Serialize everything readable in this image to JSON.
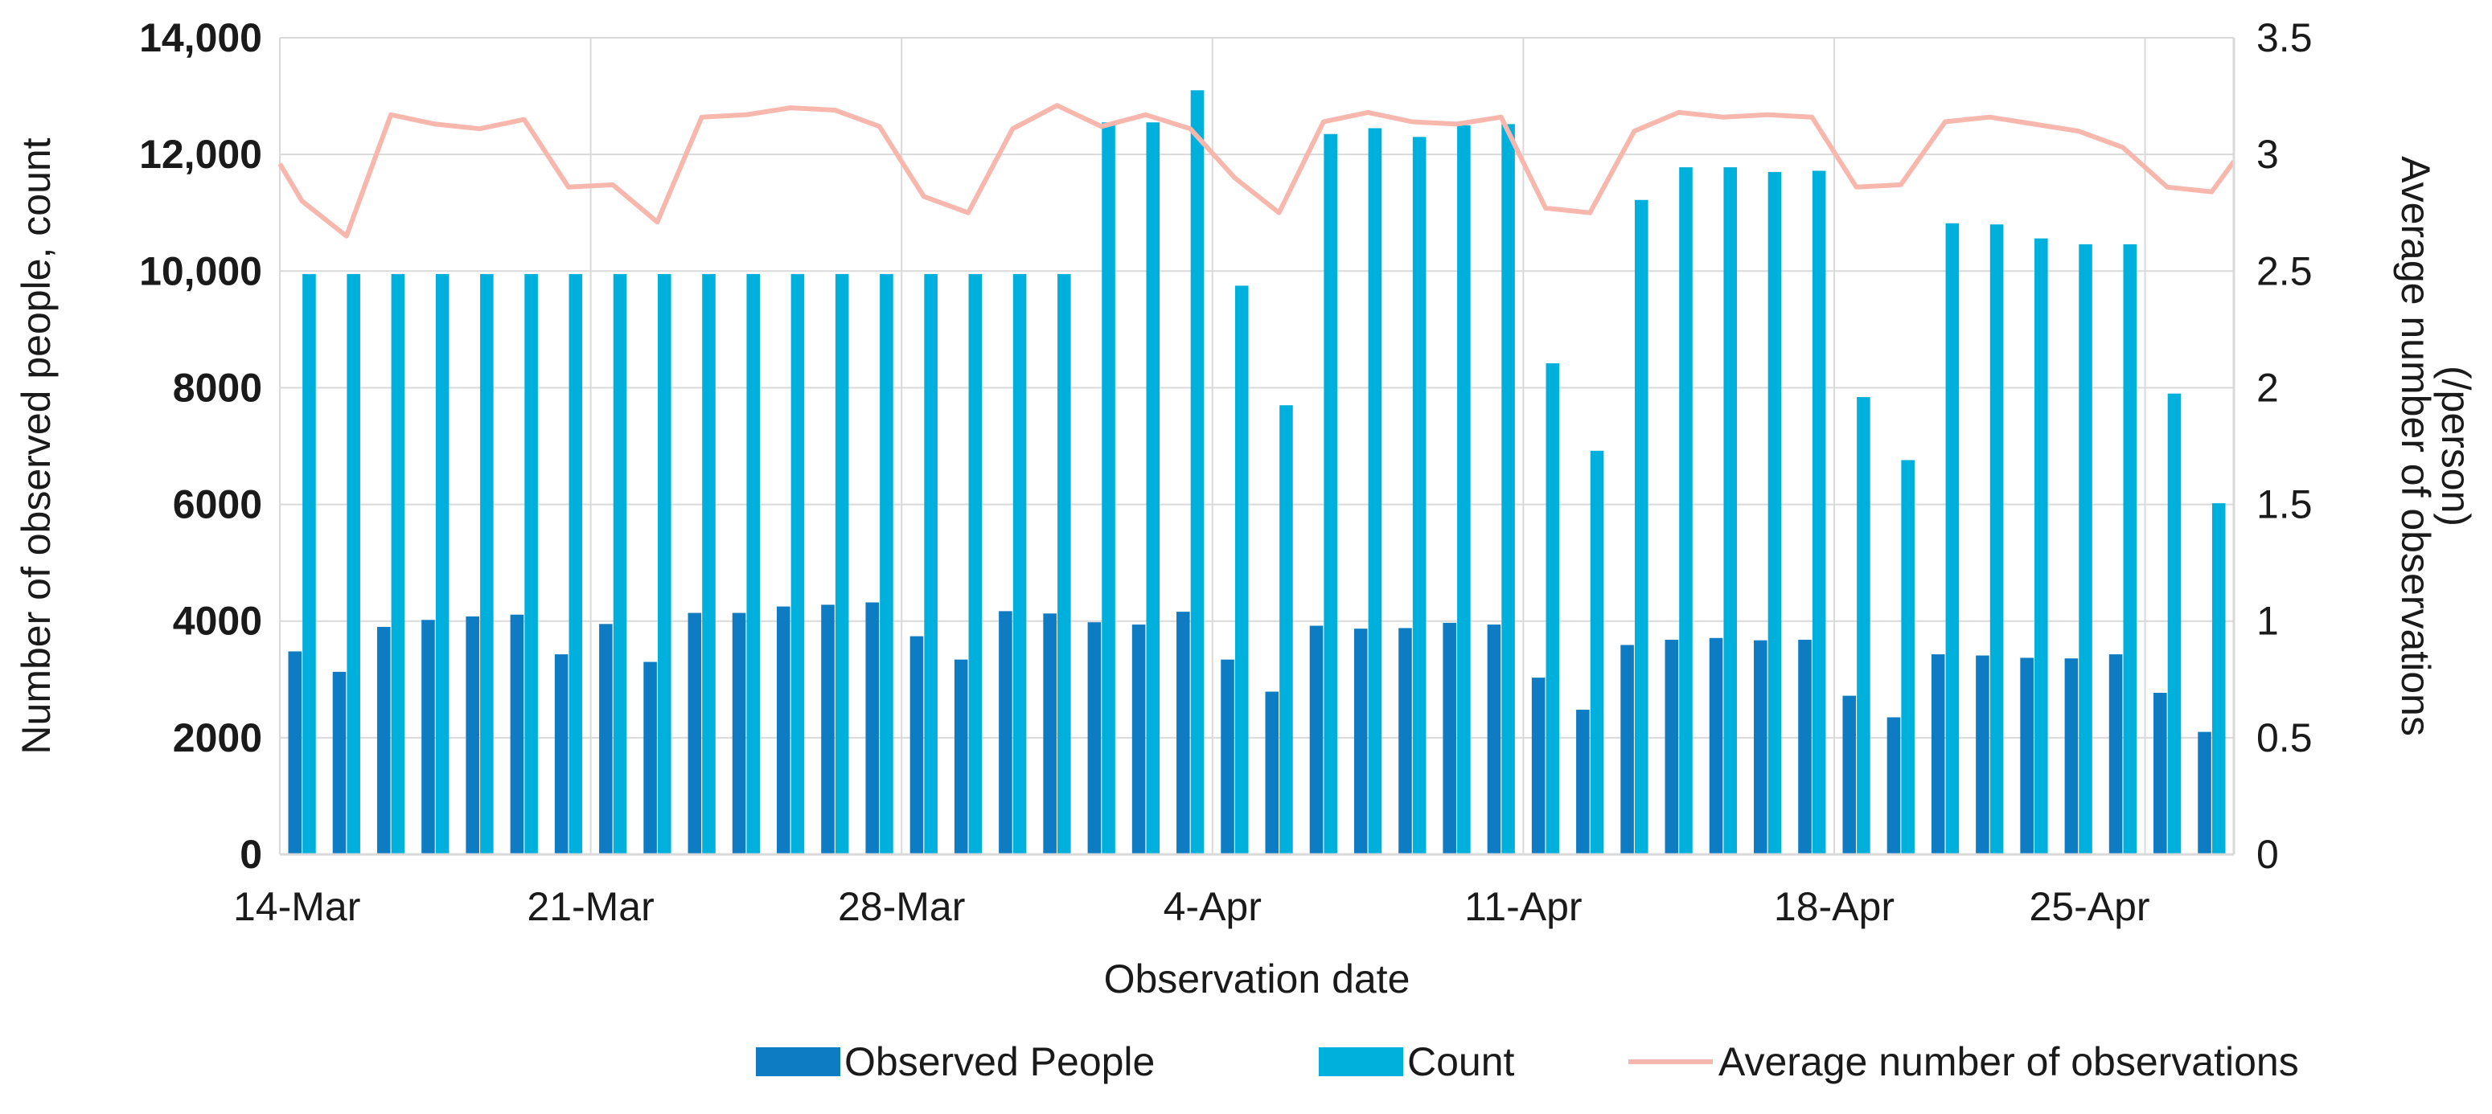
{
  "chart_data": {
    "type": "bar+line",
    "x_tick_labels": [
      "14-Mar",
      "21-Mar",
      "28-Mar",
      "4-Apr",
      "11-Apr",
      "18-Apr",
      "25-Apr"
    ],
    "xlabel": "Observation date",
    "ylabel_left": "Number of observed people, count",
    "ylabel_right_lines": [
      "Average number of observations",
      "(/person)"
    ],
    "y_left_ticks": [
      "0",
      "2000",
      "4000",
      "6000",
      "8000",
      "10,000",
      "12,000",
      "14,000"
    ],
    "y_right_ticks": [
      "0",
      "0.5",
      "1",
      "1.5",
      "2",
      "2.5",
      "3",
      "3.5"
    ],
    "ylim_left": [
      0,
      14000
    ],
    "ylim_right": [
      0,
      3.5
    ],
    "x_day_range": [
      0,
      44
    ],
    "x_tick_days": [
      0,
      7,
      14,
      21,
      28,
      35,
      42
    ],
    "legend_position": "bottom",
    "series": [
      {
        "name": "Observed People",
        "axis": "left",
        "kind": "bar",
        "color": "#0E7CC2",
        "points": [
          [
            0.5,
            3480
          ],
          [
            1.5,
            3130
          ],
          [
            2.5,
            3900
          ],
          [
            3.5,
            4020
          ],
          [
            4.5,
            4080
          ],
          [
            5.5,
            4110
          ],
          [
            6.5,
            3430
          ],
          [
            7.5,
            3950
          ],
          [
            8.5,
            3300
          ],
          [
            9.5,
            4140
          ],
          [
            10.5,
            4140
          ],
          [
            11.5,
            4250
          ],
          [
            12.5,
            4280
          ],
          [
            13.5,
            4320
          ],
          [
            14.5,
            3740
          ],
          [
            15.5,
            3340
          ],
          [
            16.5,
            4170
          ],
          [
            17.5,
            4130
          ],
          [
            18.5,
            3980
          ],
          [
            19.5,
            3940
          ],
          [
            20.5,
            4160
          ],
          [
            21.5,
            3340
          ],
          [
            22.5,
            2790
          ],
          [
            23.5,
            3920
          ],
          [
            24.5,
            3870
          ],
          [
            25.5,
            3880
          ],
          [
            26.5,
            3970
          ],
          [
            27.5,
            3940
          ],
          [
            28.5,
            3030
          ],
          [
            29.5,
            2480
          ],
          [
            30.5,
            3590
          ],
          [
            31.5,
            3680
          ],
          [
            32.5,
            3710
          ],
          [
            33.5,
            3670
          ],
          [
            34.5,
            3680
          ],
          [
            35.5,
            2720
          ],
          [
            36.5,
            2350
          ],
          [
            37.5,
            3430
          ],
          [
            38.5,
            3410
          ],
          [
            39.5,
            3370
          ],
          [
            40.5,
            3360
          ],
          [
            41.5,
            3430
          ],
          [
            42.5,
            2770
          ],
          [
            43.5,
            2100
          ]
        ]
      },
      {
        "name": "Count",
        "axis": "left",
        "kind": "bar",
        "color": "#00B0DC",
        "points": [
          [
            0.5,
            9950
          ],
          [
            1.5,
            9950
          ],
          [
            2.5,
            9950
          ],
          [
            3.5,
            9950
          ],
          [
            4.5,
            9950
          ],
          [
            5.5,
            9950
          ],
          [
            6.5,
            9950
          ],
          [
            7.5,
            9950
          ],
          [
            8.5,
            9950
          ],
          [
            9.5,
            9950
          ],
          [
            10.5,
            9950
          ],
          [
            11.5,
            9950
          ],
          [
            12.5,
            9950
          ],
          [
            13.5,
            9950
          ],
          [
            14.5,
            9950
          ],
          [
            15.5,
            9950
          ],
          [
            16.5,
            9950
          ],
          [
            17.5,
            9950
          ],
          [
            18.5,
            12550
          ],
          [
            19.5,
            12550
          ],
          [
            20.5,
            13100
          ],
          [
            21.5,
            9750
          ],
          [
            22.5,
            7700
          ],
          [
            23.5,
            12350
          ],
          [
            24.5,
            12450
          ],
          [
            25.5,
            12300
          ],
          [
            26.5,
            12500
          ],
          [
            27.5,
            12520
          ],
          [
            28.5,
            8420
          ],
          [
            29.5,
            6920
          ],
          [
            30.5,
            11220
          ],
          [
            31.5,
            11780
          ],
          [
            32.5,
            11780
          ],
          [
            33.5,
            11700
          ],
          [
            34.5,
            11720
          ],
          [
            35.5,
            7840
          ],
          [
            36.5,
            6760
          ],
          [
            37.5,
            10820
          ],
          [
            38.5,
            10800
          ],
          [
            39.5,
            10560
          ],
          [
            40.5,
            10460
          ],
          [
            41.5,
            10460
          ],
          [
            42.5,
            7900
          ],
          [
            43.5,
            6020
          ]
        ]
      },
      {
        "name": "Average number of observations",
        "axis": "right",
        "kind": "line",
        "color": "#F7B7AD",
        "points": [
          [
            0,
            2.96
          ],
          [
            0.5,
            2.8
          ],
          [
            1.5,
            2.65
          ],
          [
            2.5,
            3.17
          ],
          [
            3.5,
            3.13
          ],
          [
            4.5,
            3.11
          ],
          [
            5.5,
            3.15
          ],
          [
            6.5,
            2.86
          ],
          [
            7.5,
            2.87
          ],
          [
            8.5,
            2.71
          ],
          [
            9.5,
            3.16
          ],
          [
            10.5,
            3.17
          ],
          [
            11.5,
            3.2
          ],
          [
            12.5,
            3.19
          ],
          [
            13.5,
            3.12
          ],
          [
            14.5,
            2.82
          ],
          [
            15.5,
            2.75
          ],
          [
            16.5,
            3.11
          ],
          [
            17.5,
            3.21
          ],
          [
            18.5,
            3.12
          ],
          [
            19.5,
            3.17
          ],
          [
            20.5,
            3.11
          ],
          [
            21.5,
            2.9
          ],
          [
            22.5,
            2.75
          ],
          [
            23.5,
            3.14
          ],
          [
            24.5,
            3.18
          ],
          [
            25.5,
            3.14
          ],
          [
            26.5,
            3.13
          ],
          [
            27.5,
            3.16
          ],
          [
            28.5,
            2.77
          ],
          [
            29.5,
            2.75
          ],
          [
            30.5,
            3.1
          ],
          [
            31.5,
            3.18
          ],
          [
            32.5,
            3.16
          ],
          [
            33.5,
            3.17
          ],
          [
            34.5,
            3.16
          ],
          [
            35.5,
            2.86
          ],
          [
            36.5,
            2.87
          ],
          [
            37.5,
            3.14
          ],
          [
            38.5,
            3.16
          ],
          [
            39.5,
            3.13
          ],
          [
            40.5,
            3.1
          ],
          [
            41.5,
            3.03
          ],
          [
            42.5,
            2.86
          ],
          [
            43.5,
            2.84
          ],
          [
            44,
            2.97
          ]
        ]
      }
    ]
  }
}
